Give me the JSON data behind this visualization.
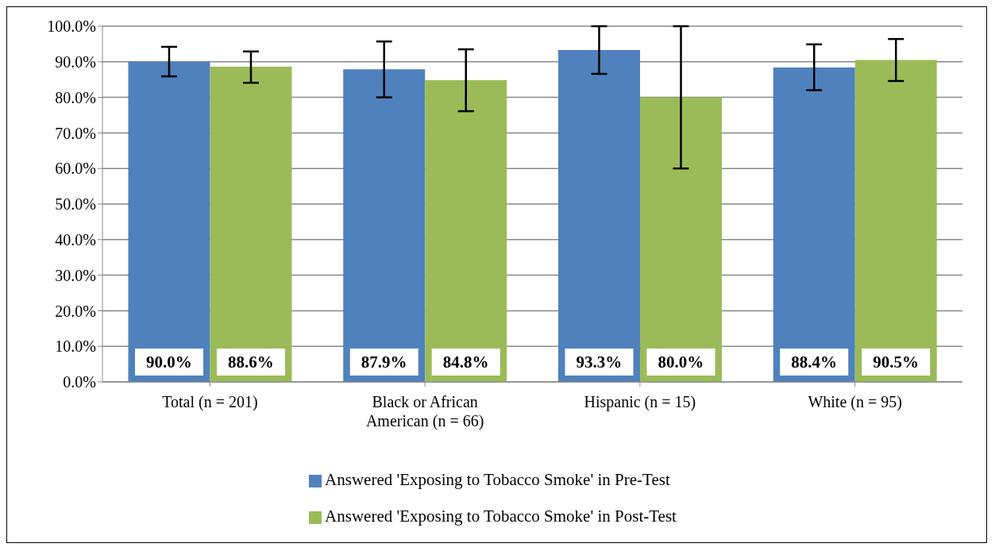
{
  "chart_data": {
    "type": "bar",
    "categories": [
      "Total (n = 201)",
      "Black or African American (n = 66)",
      "Hispanic (n = 15)",
      "White (n = 95)"
    ],
    "series": [
      {
        "name": "Answered 'Exposing to Tobacco Smoke' in Pre-Test",
        "color": "#4f81bd",
        "values": [
          90.0,
          87.9,
          93.3,
          88.4
        ],
        "value_labels": [
          "90.0%",
          "87.9%",
          "93.3%",
          "88.4%"
        ],
        "errors": [
          [
            85.9,
            94.2
          ],
          [
            80.0,
            95.7
          ],
          [
            86.6,
            100.0
          ],
          [
            82.0,
            94.9
          ]
        ]
      },
      {
        "name": "Answered 'Exposing to Tobacco Smoke' in Post-Test",
        "color": "#9bbb59",
        "values": [
          88.6,
          84.8,
          80.0,
          90.5
        ],
        "value_labels": [
          "88.6%",
          "84.8%",
          "80.0%",
          "90.5%"
        ],
        "errors": [
          [
            84.1,
            92.9
          ],
          [
            76.1,
            93.5
          ],
          [
            60.0,
            100.0
          ],
          [
            84.6,
            96.4
          ]
        ]
      }
    ],
    "ylim": [
      0,
      100
    ],
    "yticks": [
      {
        "value": 0,
        "label": "0.0%"
      },
      {
        "value": 10,
        "label": "10.0%"
      },
      {
        "value": 20,
        "label": "20.0%"
      },
      {
        "value": 30,
        "label": "30.0%"
      },
      {
        "value": 40,
        "label": "40.0%"
      },
      {
        "value": 50,
        "label": "50.0%"
      },
      {
        "value": 60,
        "label": "60.0%"
      },
      {
        "value": 70,
        "label": "70.0%"
      },
      {
        "value": 80,
        "label": "80.0%"
      },
      {
        "value": 90,
        "label": "90.0%"
      },
      {
        "value": 100,
        "label": "100.0%"
      }
    ],
    "grid": "y",
    "legend": "bottom"
  }
}
